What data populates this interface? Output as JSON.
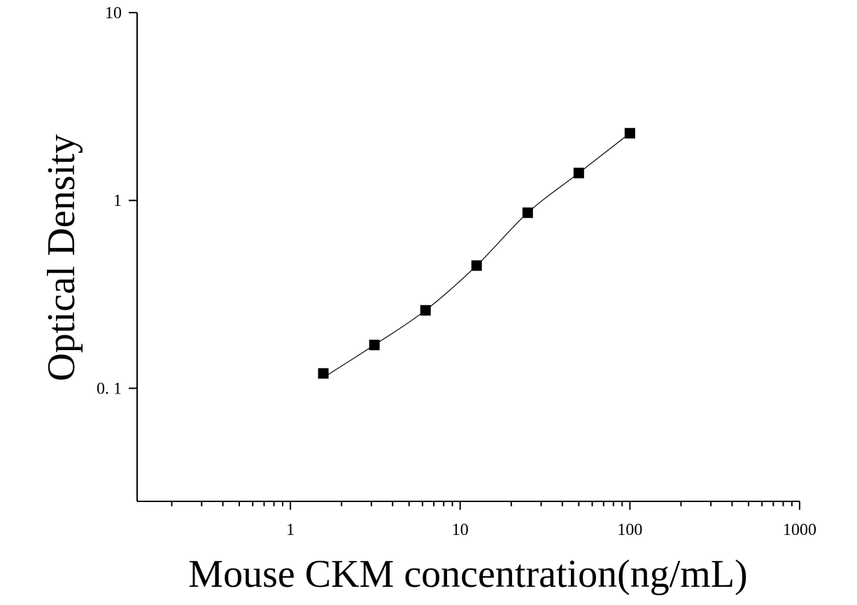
{
  "chart_data": {
    "type": "scatter",
    "xlabel": "Mouse CKM concentration(ng/mL)",
    "ylabel": "Optical Density",
    "x_scale": "log",
    "y_scale": "log",
    "xlim": [
      0.125,
      1000
    ],
    "ylim": [
      0.025,
      10
    ],
    "x_ticks": [
      {
        "value": 1,
        "label": "1"
      },
      {
        "value": 10,
        "label": "10"
      },
      {
        "value": 100,
        "label": "100"
      },
      {
        "value": 1000,
        "label": "1000"
      }
    ],
    "y_ticks": [
      {
        "value": 0.1,
        "label": "0. 1"
      },
      {
        "value": 1,
        "label": "1"
      },
      {
        "value": 10,
        "label": "10"
      }
    ],
    "grid": false,
    "series": [
      {
        "marker": "square",
        "color": "#000000",
        "fit_line": true,
        "points": [
          {
            "x": 1.5625,
            "y": 0.12
          },
          {
            "x": 3.125,
            "y": 0.17
          },
          {
            "x": 6.25,
            "y": 0.26
          },
          {
            "x": 12.5,
            "y": 0.45
          },
          {
            "x": 25,
            "y": 0.86
          },
          {
            "x": 50,
            "y": 1.4
          },
          {
            "x": 100,
            "y": 2.28
          }
        ]
      }
    ]
  }
}
